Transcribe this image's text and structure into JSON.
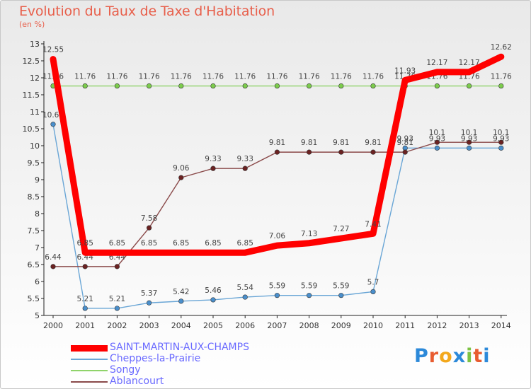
{
  "header": {
    "title": "Evolution du Taux de Taxe d'Habitation",
    "subtitle": "(en %)"
  },
  "logo": {
    "text": "Proxiti",
    "letters": [
      {
        "ch": "P",
        "color": "#2c89d9"
      },
      {
        "ch": "r",
        "color": "#e85c30"
      },
      {
        "ch": "o",
        "color": "#f3a81c"
      },
      {
        "ch": "x",
        "color": "#2c89d9"
      },
      {
        "ch": "i",
        "color": "#7cc242"
      },
      {
        "ch": "t",
        "color": "#e85c30"
      },
      {
        "ch": "i",
        "color": "#2c89d9"
      }
    ]
  },
  "chart_data": {
    "type": "line",
    "x": [
      "2000",
      "2001",
      "2002",
      "2003",
      "2004",
      "2005",
      "2006",
      "2007",
      "2008",
      "2009",
      "2010",
      "2011",
      "2012",
      "2013",
      "2014"
    ],
    "ylim": [
      5,
      13
    ],
    "yticks": [
      5,
      5.5,
      6,
      6.5,
      7,
      7.5,
      8,
      8.5,
      9,
      9.5,
      10,
      10.5,
      11,
      11.5,
      12,
      12.5,
      13
    ],
    "ytick_labels": [
      "5",
      "5.5",
      "6",
      "6.5",
      "7",
      "7.5",
      "8",
      "8.5",
      "9",
      "9.5",
      "10",
      "10.5",
      "11",
      "11.5",
      "12",
      "12.5",
      "13"
    ],
    "grid": false,
    "legend_position": "bottom-left",
    "series": [
      {
        "name": "Songy",
        "color": "#8fd36a",
        "marker": "#7ccc4c",
        "values": [
          11.76,
          11.76,
          11.76,
          11.76,
          11.76,
          11.76,
          11.76,
          11.76,
          11.76,
          11.76,
          11.76,
          11.76,
          11.76,
          11.76,
          11.76
        ],
        "labels": [
          "11.76",
          "11.76",
          "11.76",
          "11.76",
          "11.76",
          "11.76",
          "11.76",
          "11.76",
          "11.76",
          "11.76",
          "11.76",
          "11.76",
          "11.76",
          "11.76",
          "11.76"
        ]
      },
      {
        "name": "Cheppes-la-Prairie",
        "color": "#6aa6d6",
        "marker": "#4a8fcc",
        "values": [
          10.63,
          5.21,
          5.21,
          5.37,
          5.42,
          5.46,
          5.54,
          5.59,
          5.59,
          5.59,
          5.7,
          9.93,
          9.93,
          9.93,
          9.93
        ],
        "labels": [
          "10.63",
          "5.21",
          "5.21",
          "5.37",
          "5.42",
          "5.46",
          "5.54",
          "5.59",
          "5.59",
          "5.59",
          "5.7",
          "9.93",
          "9.93",
          "9.93",
          "9.93"
        ]
      },
      {
        "name": "Ablancourt",
        "color": "#8a4a4a",
        "marker": "#6b2222",
        "values": [
          6.44,
          6.44,
          6.44,
          7.58,
          9.06,
          9.33,
          9.33,
          9.81,
          9.81,
          9.81,
          9.81,
          9.81,
          10.1,
          10.1,
          10.1
        ],
        "labels": [
          "6.44",
          "6.44",
          "6.44",
          "7.58",
          "9.06",
          "9.33",
          "9.33",
          "9.81",
          "9.81",
          "9.81",
          "9.81",
          "9.81",
          "10.1",
          "10.1",
          "10.1"
        ]
      },
      {
        "name": "SAINT-MARTIN-AUX-CHAMPS",
        "color": "#ff0000",
        "marker": "#ff0000",
        "values": [
          12.55,
          6.85,
          6.85,
          6.85,
          6.85,
          6.85,
          6.85,
          7.06,
          7.13,
          7.27,
          7.41,
          11.93,
          12.17,
          12.17,
          12.62
        ],
        "labels": [
          "12.55",
          "6.85",
          "6.85",
          "6.85",
          "6.85",
          "6.85",
          "6.85",
          "7.06",
          "7.13",
          "7.27",
          "7.41",
          "11.93",
          "12.17",
          "12.17",
          "12.62"
        ]
      }
    ],
    "legend_order": [
      "SAINT-MARTIN-AUX-CHAMPS",
      "Cheppes-la-Prairie",
      "Songy",
      "Ablancourt"
    ]
  }
}
